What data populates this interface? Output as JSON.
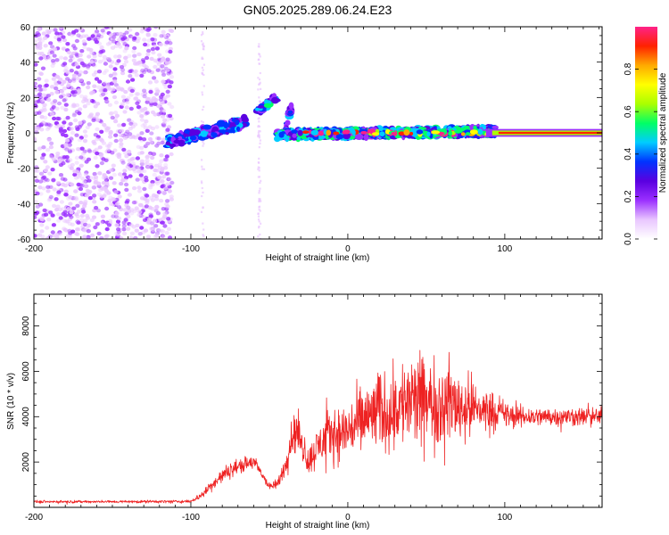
{
  "title": "GN05.2025.289.06.24.E23",
  "chart_data": [
    {
      "type": "heatmap",
      "name": "spectrogram",
      "xlabel": "Height of straight line (km)",
      "ylabel": "Frequency (Hz)",
      "xlim": [
        -200,
        162
      ],
      "ylim": [
        -60,
        60
      ],
      "xticks": [
        -200,
        -100,
        0,
        100
      ],
      "yticks": [
        -60,
        -40,
        -20,
        0,
        20,
        40,
        60
      ],
      "colorbar": {
        "label": "Normalized spectral amplitude",
        "range": [
          0,
          1
        ],
        "ticks": [
          0.0,
          0.2,
          0.4,
          0.6,
          0.8
        ],
        "stops": [
          "#ffffff",
          "#e9c6ff",
          "#9b30ff",
          "#5a00e0",
          "#0033ff",
          "#00ccff",
          "#00ff66",
          "#aaff00",
          "#ffff00",
          "#ffaa00",
          "#ff2200",
          "#ff2288"
        ]
      },
      "segments": [
        {
          "note": "broadband noise region",
          "x": [
            -200,
            -112
          ],
          "freq": [
            -60,
            60
          ],
          "amplitude": 0.12
        },
        {
          "note": "rising track 1",
          "x": [
            -115,
            -65
          ],
          "freq": [
            -5,
            6
          ],
          "amplitude": 0.3
        },
        {
          "note": "rising track 2",
          "x": [
            -58,
            -45
          ],
          "freq": [
            12,
            20
          ],
          "amplitude": 0.35
        },
        {
          "note": "rising track 3",
          "x": [
            -40,
            -36
          ],
          "freq": [
            0,
            15
          ],
          "amplitude": 0.3
        },
        {
          "note": "main zero-Hz band",
          "x": [
            -45,
            90
          ],
          "freq": [
            -1,
            1
          ],
          "amplitude": 0.45
        },
        {
          "note": "stable strong line",
          "x": [
            95,
            162
          ],
          "freq": [
            0,
            0
          ],
          "amplitude": 0.95
        }
      ]
    },
    {
      "type": "line",
      "name": "snr",
      "xlabel": "Height of straight line (km)",
      "ylabel": "SNR (10 * v/v)",
      "xlim": [
        -200,
        162
      ],
      "ylim": [
        0,
        9400
      ],
      "xticks": [
        -200,
        -100,
        0,
        100
      ],
      "yticks": [
        2000,
        4000,
        6000,
        8000
      ],
      "color": "#ee2222",
      "envelope_x": [
        -200,
        -150,
        -100,
        -92,
        -85,
        -78,
        -72,
        -66,
        -60,
        -55,
        -50,
        -45,
        -40,
        -36,
        -32,
        -28,
        -25,
        -20,
        -15,
        -10,
        -5,
        0,
        5,
        10,
        15,
        20,
        25,
        30,
        35,
        40,
        45,
        50,
        55,
        60,
        65,
        70,
        75,
        80,
        85,
        90,
        95,
        100,
        105,
        110,
        115,
        120,
        125,
        130,
        135,
        140,
        145,
        150,
        155,
        162
      ],
      "envelope_mean": [
        250,
        250,
        260,
        600,
        1100,
        1500,
        1750,
        1900,
        2000,
        1500,
        900,
        1000,
        1800,
        3100,
        3400,
        2500,
        2000,
        2600,
        3000,
        3300,
        3200,
        3400,
        3600,
        3900,
        4000,
        4300,
        4200,
        4400,
        4600,
        4700,
        4600,
        4700,
        4500,
        4600,
        4700,
        4500,
        4400,
        4400,
        4300,
        4300,
        4200,
        4100,
        4000,
        4000,
        4000,
        4000,
        4000,
        4000,
        4000,
        4000,
        4000,
        4000,
        4000,
        4000
      ],
      "envelope_spread": [
        80,
        80,
        100,
        250,
        400,
        500,
        500,
        450,
        500,
        350,
        250,
        350,
        600,
        1300,
        1300,
        1000,
        900,
        1300,
        1500,
        1700,
        1800,
        1900,
        2100,
        2300,
        2400,
        2600,
        2500,
        2700,
        2900,
        3000,
        3000,
        2900,
        2800,
        2700,
        2600,
        2400,
        2200,
        1900,
        1600,
        1300,
        1100,
        900,
        800,
        700,
        650,
        600,
        600,
        600,
        600,
        600,
        600,
        600,
        600,
        600
      ]
    }
  ]
}
